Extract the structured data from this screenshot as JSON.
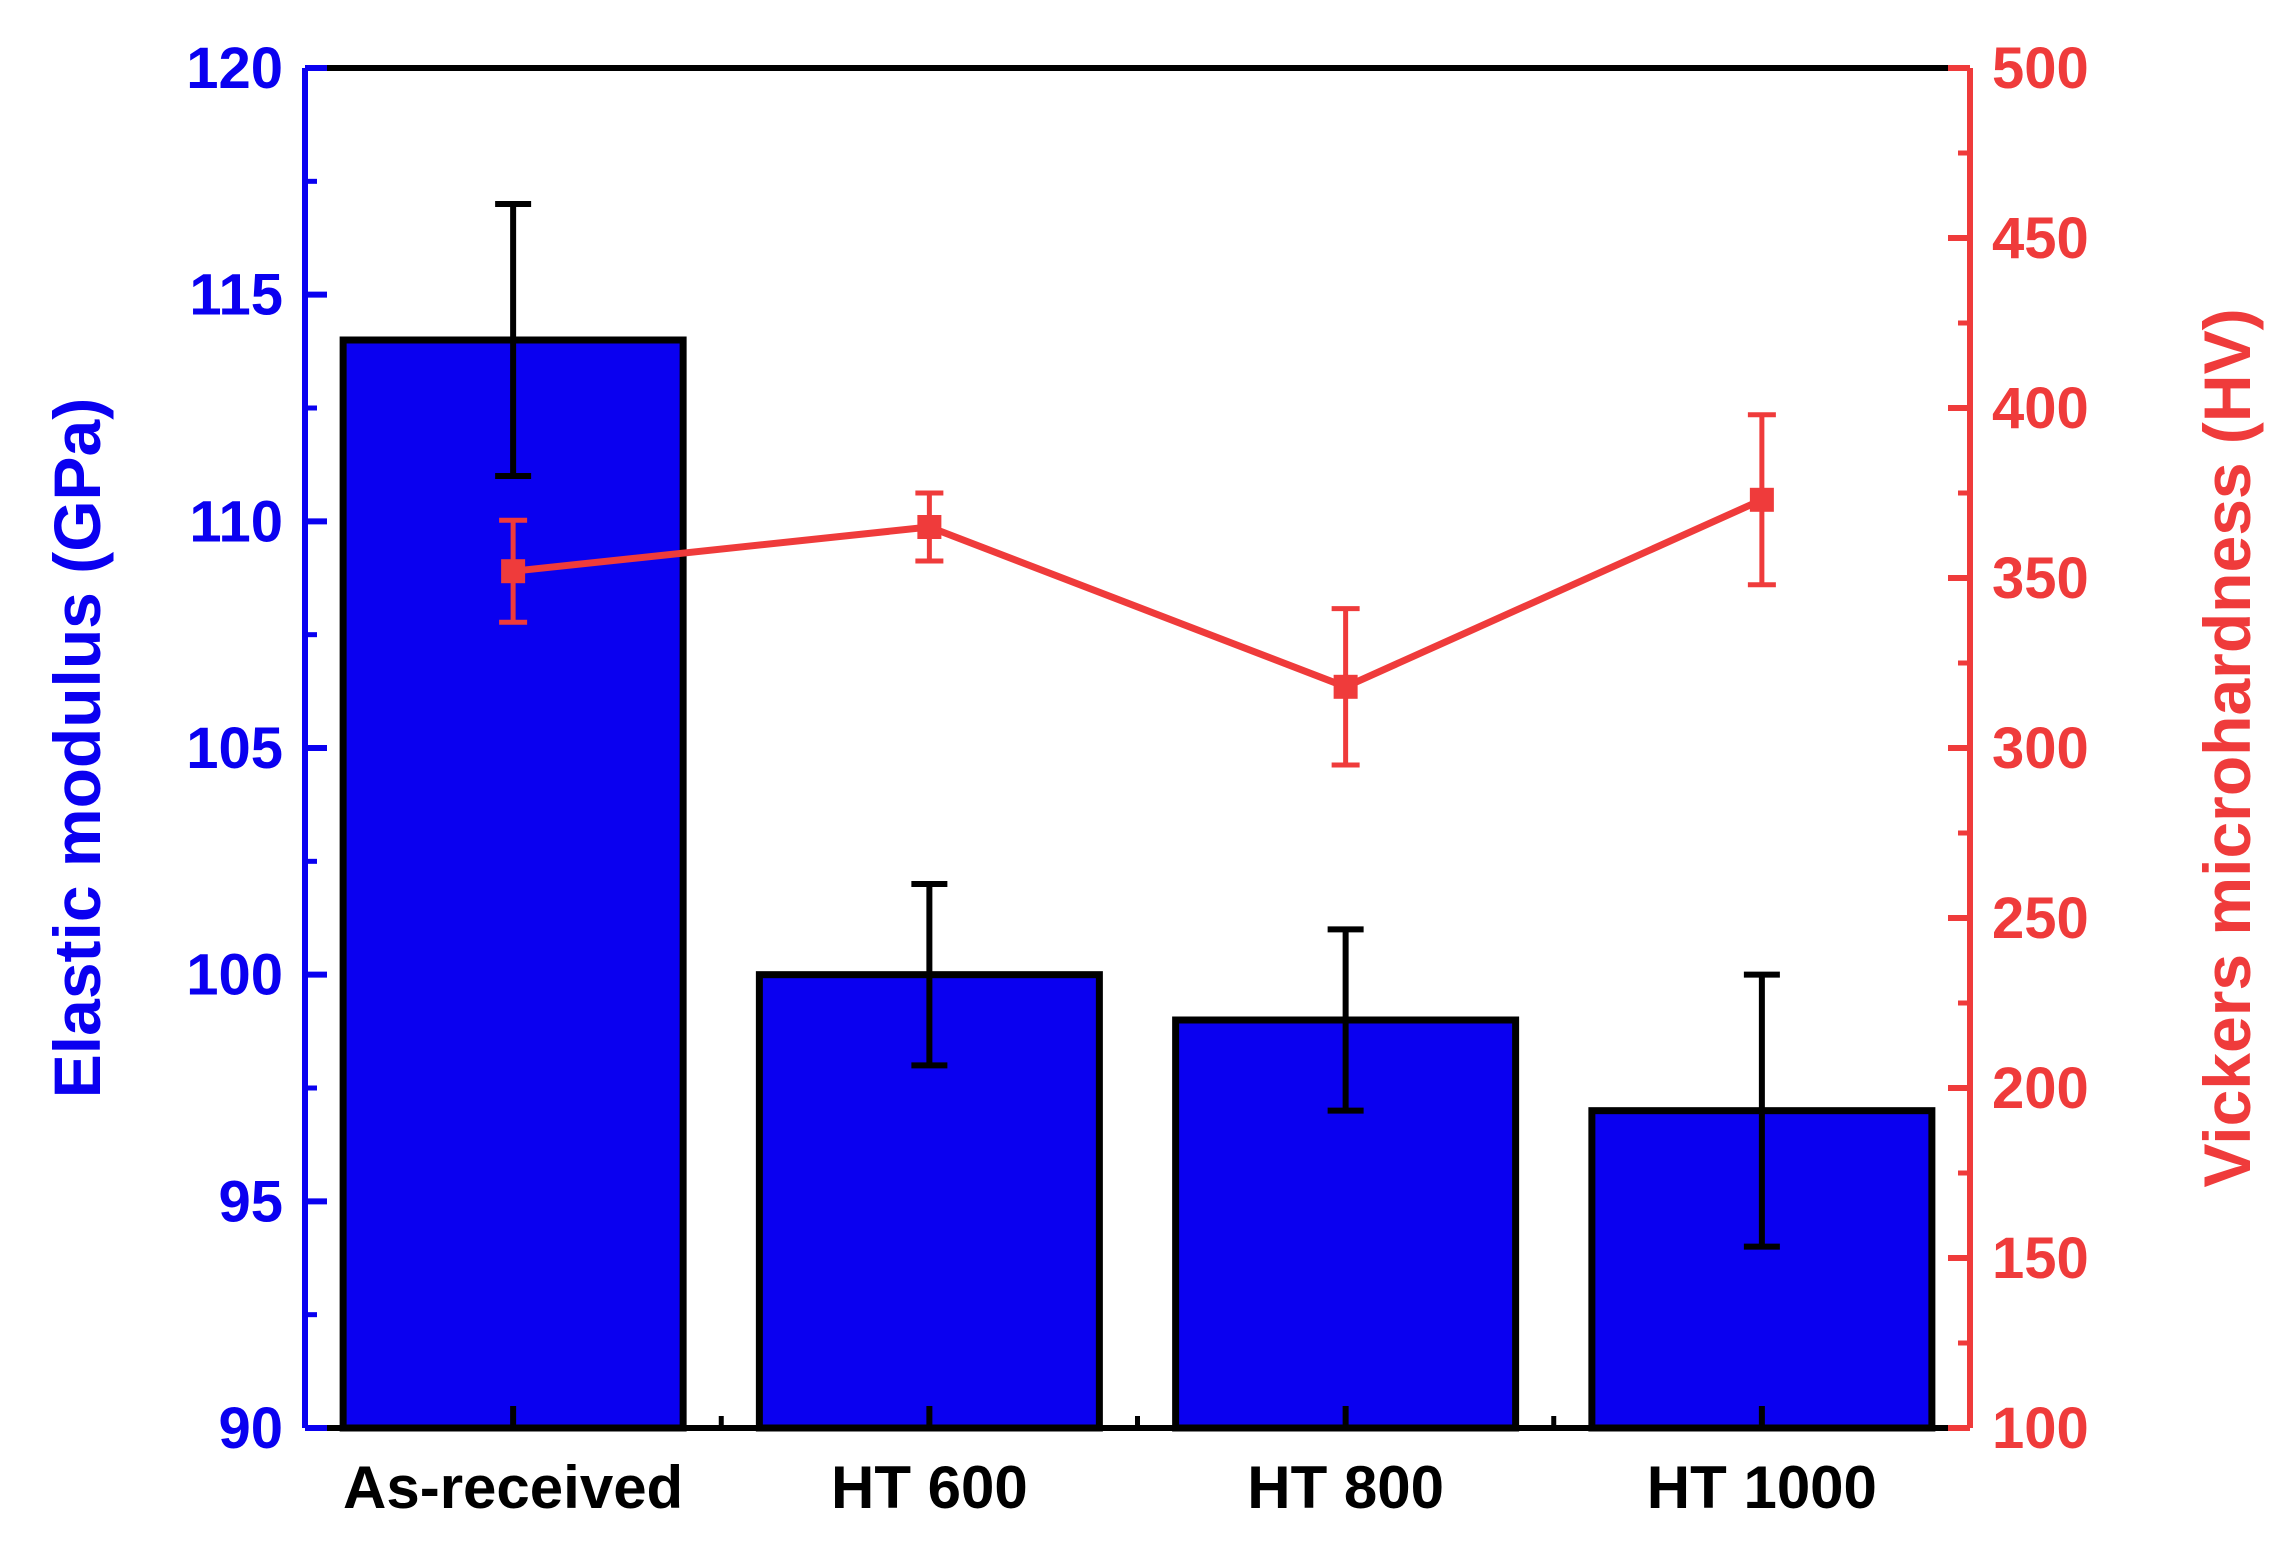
{
  "chart_data": {
    "type": "bar",
    "title": "",
    "categories": [
      "As-received",
      "HT 600",
      "HT 800",
      "HT 1000"
    ],
    "series": [
      {
        "name": "",
        "type": "bar",
        "axis": "left",
        "color": "#0a00f0",
        "values": [
          114,
          100,
          99,
          97
        ],
        "error": [
          3,
          2,
          2,
          3
        ]
      },
      {
        "name": "",
        "type": "line",
        "axis": "right",
        "color": "#ef3b3b",
        "values": [
          352,
          365,
          318,
          373
        ],
        "error": [
          15,
          10,
          23,
          25
        ]
      }
    ],
    "left_axis": {
      "label": "Elastic modulus (GPa)",
      "color": "#0a00f0",
      "ylim": [
        90,
        120
      ],
      "ticks": [
        90,
        95,
        100,
        105,
        110,
        115,
        120
      ]
    },
    "right_axis": {
      "label": "Vickers microhardness (HV)",
      "color": "#ef3b3b",
      "ylim": [
        100,
        500
      ],
      "ticks": [
        100,
        150,
        200,
        250,
        300,
        350,
        400,
        450,
        500
      ]
    },
    "grid": false,
    "legend": "none"
  }
}
